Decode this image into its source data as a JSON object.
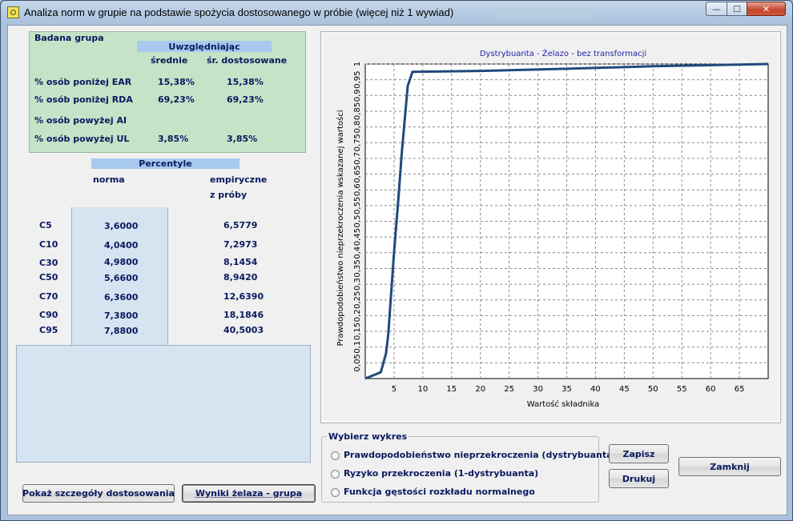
{
  "window": {
    "title": "Analiza norm w grupie na podstawie spożycia dostosowanego w próbie (więcej niż 1 wywiad)",
    "controls": {
      "minimize": "—",
      "maximize": "☐",
      "close": "✕"
    }
  },
  "group": {
    "title": "Badana grupa",
    "header": "Uwzględniając",
    "col1": "średnie",
    "col2": "śr. dostosowane",
    "rows": [
      {
        "label": "% osób poniżej EAR",
        "v1": "15,38%",
        "v2": "15,38%"
      },
      {
        "label": "% osób poniżej RDA",
        "v1": "69,23%",
        "v2": "69,23%"
      },
      {
        "label": "% osób powyżej AI",
        "v1": "",
        "v2": ""
      },
      {
        "label": "% osób powyżej UL",
        "v1": "3,85%",
        "v2": "3,85%"
      }
    ]
  },
  "percentiles": {
    "title": "Percentyle",
    "col1": "norma",
    "col2_line1": "empiryczne",
    "col2_line2": "z próby",
    "rows": [
      {
        "label": "C5",
        "norm": "3,6000",
        "emp": "6,5779"
      },
      {
        "label": "C10",
        "norm": "4,0400",
        "emp": "7,2973"
      },
      {
        "label": "C30",
        "norm": "4,9800",
        "emp": "8,1454"
      },
      {
        "label": "C50",
        "norm": "5,6600",
        "emp": "8,9420"
      },
      {
        "label": "C70",
        "norm": "6,3600",
        "emp": "12,6390"
      },
      {
        "label": "C90",
        "norm": "7,3800",
        "emp": "18,1846"
      },
      {
        "label": "C95",
        "norm": "7,8800",
        "emp": "40,5003"
      }
    ]
  },
  "buttons": {
    "details": "Pokaż szczegóły dostosowania",
    "results": "Wyniki żelaza - grupa",
    "save": "Zapisz",
    "print": "Drukuj",
    "close": "Zamknij"
  },
  "chart_selector": {
    "title": "Wybierz wykres",
    "options": [
      "Prawdopodobieństwo nieprzekroczenia (dystrybuanta)",
      "Ryzyko przekroczenia (1-dystrybuanta)",
      "Funkcja gęstości rozkładu normalnego"
    ]
  },
  "chart_data": {
    "type": "line",
    "title": "Dystrybuanta - Żelazo - bez transformacji",
    "xlabel": "Wartość składnika",
    "ylabel": "Prawdopodobieństwo nieprzekroczenia wskazanej wartości",
    "xlim": [
      0,
      70
    ],
    "ylim": [
      0,
      1
    ],
    "x_ticks": [
      "5",
      "10",
      "15",
      "20",
      "25",
      "30",
      "35",
      "40",
      "45",
      "50",
      "55",
      "60",
      "65"
    ],
    "y_ticks": [
      "0,05",
      "0,1",
      "0,15",
      "0,2",
      "0,25",
      "0,3",
      "0,35",
      "0,4",
      "0,45",
      "0,5",
      "0,55",
      "0,6",
      "0,65",
      "0,7",
      "0,75",
      "0,8",
      "0,85",
      "0,9",
      "0,95",
      "1"
    ],
    "grid": true,
    "line_color": "#1f4a7a",
    "points": [
      {
        "x": 0,
        "y": 0.0
      },
      {
        "x": 2.7,
        "y": 0.02
      },
      {
        "x": 3.6,
        "y": 0.08
      },
      {
        "x": 4.0,
        "y": 0.14
      },
      {
        "x": 5.0,
        "y": 0.4
      },
      {
        "x": 5.66,
        "y": 0.55
      },
      {
        "x": 6.36,
        "y": 0.72
      },
      {
        "x": 7.38,
        "y": 0.93
      },
      {
        "x": 8.2,
        "y": 0.975
      },
      {
        "x": 20,
        "y": 0.978
      },
      {
        "x": 35,
        "y": 0.985
      },
      {
        "x": 50,
        "y": 0.993
      },
      {
        "x": 70,
        "y": 1.0
      }
    ]
  }
}
